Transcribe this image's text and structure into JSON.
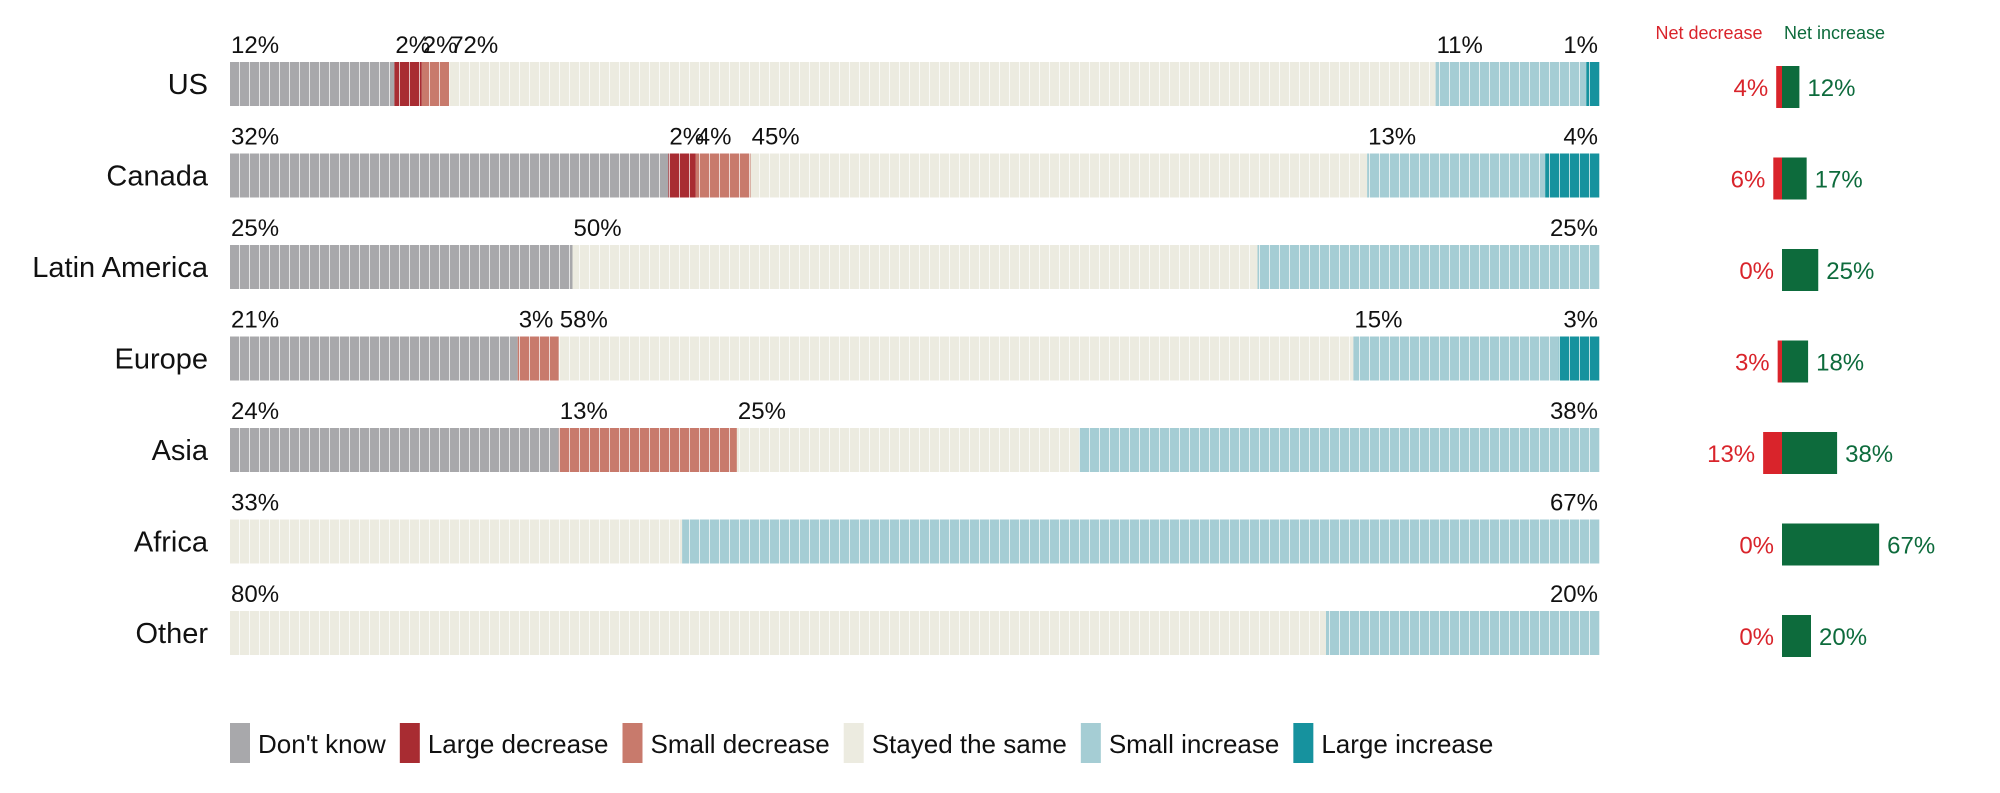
{
  "chart_data": {
    "type": "bar",
    "stacked": true,
    "orientation": "horizontal",
    "categories": [
      "US",
      "Canada",
      "Latin America",
      "Europe",
      "Asia",
      "Africa",
      "Other"
    ],
    "series": [
      {
        "name": "Don't know",
        "color": "#a8a8ab",
        "values": [
          12,
          32,
          25,
          21,
          24,
          0,
          0
        ]
      },
      {
        "name": "Large decrease",
        "color": "#a82c32",
        "values": [
          2,
          2,
          0,
          0,
          0,
          0,
          0
        ]
      },
      {
        "name": "Small decrease",
        "color": "#c87a6c",
        "values": [
          2,
          4,
          0,
          3,
          13,
          0,
          0
        ]
      },
      {
        "name": "Stayed the same",
        "color": "#ecebe0",
        "values": [
          72,
          45,
          50,
          58,
          25,
          33,
          80
        ]
      },
      {
        "name": "Small increase",
        "color": "#a5cdd4",
        "values": [
          11,
          13,
          25,
          15,
          38,
          67,
          20
        ]
      },
      {
        "name": "Large increase",
        "color": "#16929e",
        "values": [
          1,
          4,
          0,
          3,
          0,
          0,
          0
        ]
      }
    ],
    "segment_labels": [
      [
        "12%",
        "2%",
        "2%",
        "72%",
        "11%",
        "1%"
      ],
      [
        "32%",
        "2%",
        "4%",
        "45%",
        "13%",
        "4%"
      ],
      [
        "25%",
        "",
        "",
        "50%",
        "25%",
        ""
      ],
      [
        "21%",
        "",
        "3%",
        "58%",
        "15%",
        "3%"
      ],
      [
        "24%",
        "",
        "13%",
        "25%",
        "38%",
        ""
      ],
      [
        "",
        "",
        "",
        "33%",
        "67%",
        ""
      ],
      [
        "",
        "",
        "",
        "80%",
        "20%",
        ""
      ]
    ],
    "net": {
      "decrease_header": "Net decrease",
      "increase_header": "Net increase",
      "decrease_color": "#d9242b",
      "increase_color": "#0d6b3c",
      "decrease_values": [
        4,
        6,
        0,
        3,
        13,
        0,
        0
      ],
      "increase_values": [
        12,
        17,
        25,
        18,
        38,
        67,
        20
      ],
      "decrease_labels": [
        "4%",
        "6%",
        "0%",
        "3%",
        "13%",
        "0%",
        "0%"
      ],
      "increase_labels": [
        "12%",
        "17%",
        "25%",
        "18%",
        "38%",
        "67%",
        "20%"
      ]
    },
    "legend_position": "bottom-left"
  }
}
